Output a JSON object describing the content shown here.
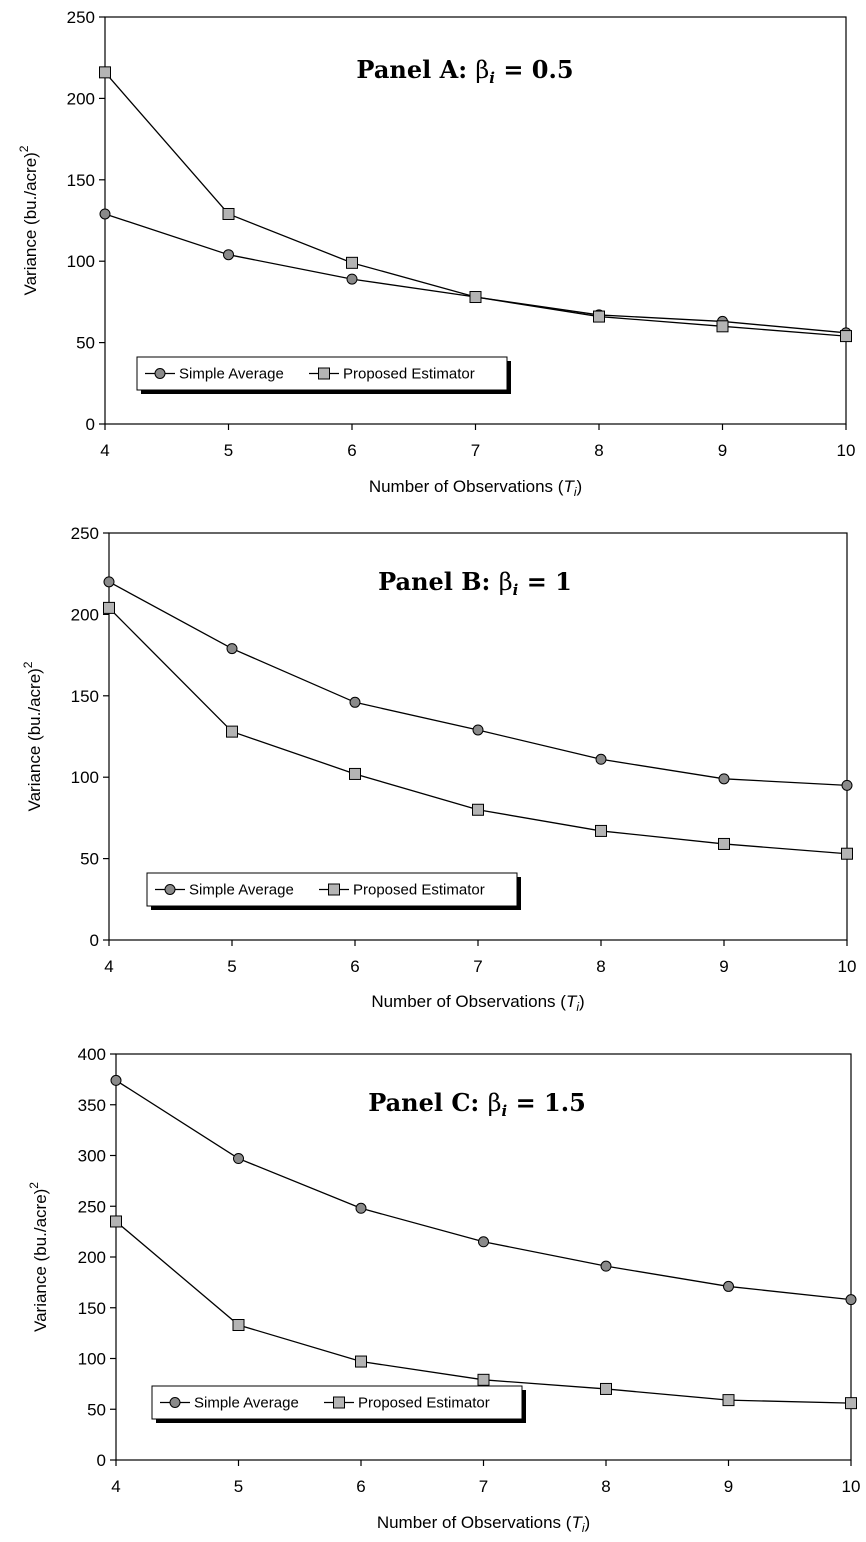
{
  "figure": {
    "colors": {
      "axis": "#000000",
      "line": "#000000",
      "circle_fill": "#8a8a8a",
      "square_fill": "#b4b4b4",
      "legend_shadow": "#000000"
    },
    "icons": [
      "circle-marker-icon",
      "square-marker-icon"
    ]
  },
  "chart_data": [
    {
      "type": "line",
      "title": {
        "prefix": "Panel A:  ",
        "symbol": "β",
        "subscript": "i",
        "suffix": " = 0.5"
      },
      "xlabel": {
        "text": "Number of Observations (",
        "var": "T",
        "sub": "i",
        "close": ")"
      },
      "ylabel": {
        "text": "Variance (bu./acre)",
        "sup": "2"
      },
      "x": [
        4,
        5,
        6,
        7,
        8,
        9,
        10
      ],
      "xlim": [
        4,
        10
      ],
      "ylim": [
        0,
        250
      ],
      "yticks": [
        0,
        50,
        100,
        150,
        200,
        250
      ],
      "legend_position": "bottom-left",
      "series": [
        {
          "name": "Simple Average",
          "marker": "circle",
          "values": [
            129,
            104,
            89,
            78,
            67,
            63,
            56
          ]
        },
        {
          "name": "Proposed Estimator",
          "marker": "square",
          "values": [
            216,
            129,
            99,
            78,
            66,
            60,
            54
          ]
        }
      ]
    },
    {
      "type": "line",
      "title": {
        "prefix": "Panel B:  ",
        "symbol": "β",
        "subscript": "i",
        "suffix": " = 1"
      },
      "xlabel": {
        "text": "Number of Observations (",
        "var": "T",
        "sub": "i",
        "close": ")"
      },
      "ylabel": {
        "text": "Variance (bu./acre)",
        "sup": "2"
      },
      "x": [
        4,
        5,
        6,
        7,
        8,
        9,
        10
      ],
      "xlim": [
        4,
        10
      ],
      "ylim": [
        0,
        250
      ],
      "yticks": [
        0,
        50,
        100,
        150,
        200,
        250
      ],
      "legend_position": "bottom-left",
      "series": [
        {
          "name": "Simple Average",
          "marker": "circle",
          "values": [
            220,
            179,
            146,
            129,
            111,
            99,
            95
          ]
        },
        {
          "name": "Proposed Estimator",
          "marker": "square",
          "values": [
            204,
            128,
            102,
            80,
            67,
            59,
            53
          ]
        }
      ]
    },
    {
      "type": "line",
      "title": {
        "prefix": "Panel C:  ",
        "symbol": "β",
        "subscript": "i",
        "suffix": " = 1.5"
      },
      "xlabel": {
        "text": "Number of Observations (",
        "var": "T",
        "sub": "i",
        "close": ")"
      },
      "ylabel": {
        "text": "Variance (bu./acre)",
        "sup": "2"
      },
      "x": [
        4,
        5,
        6,
        7,
        8,
        9,
        10
      ],
      "xlim": [
        4,
        10
      ],
      "ylim": [
        0,
        400
      ],
      "yticks": [
        0,
        50,
        100,
        150,
        200,
        250,
        300,
        350,
        400
      ],
      "legend_position": "bottom-left",
      "series": [
        {
          "name": "Simple Average",
          "marker": "circle",
          "values": [
            374,
            297,
            248,
            215,
            191,
            171,
            158
          ]
        },
        {
          "name": "Proposed Estimator",
          "marker": "square",
          "values": [
            235,
            133,
            97,
            79,
            70,
            59,
            56
          ]
        }
      ]
    }
  ]
}
